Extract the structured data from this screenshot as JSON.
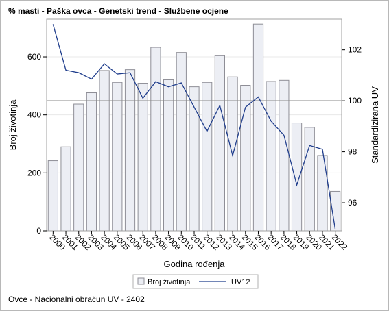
{
  "header": {
    "title": "% masti - Paška ovca - Genetski trend - Službene ocjene"
  },
  "footer": {
    "text": "Ovce - Nacionalni obračun UV - 2402"
  },
  "colors": {
    "bar_fill": "#eceef4",
    "bar_stroke": "#8e8e96",
    "line": "#1f3d8c",
    "reference_line": "#8a8a8a",
    "grid": "#e8e8e8",
    "plot_border": "#a0a0a0"
  },
  "chart_data": {
    "type": "bar",
    "categories": [
      "2000",
      "2001",
      "2002",
      "2003",
      "2004",
      "2005",
      "2006",
      "2007",
      "2008",
      "2009",
      "2010",
      "2011",
      "2012",
      "2013",
      "2014",
      "2015",
      "2016",
      "2017",
      "2018",
      "2019",
      "2020",
      "2021",
      "2022"
    ],
    "series": [
      {
        "name": "Broj životinja",
        "type": "bar",
        "axis": "left",
        "values": [
          242,
          290,
          437,
          476,
          553,
          512,
          556,
          509,
          633,
          521,
          615,
          497,
          512,
          604,
          531,
          502,
          713,
          515,
          519,
          372,
          357,
          260,
          136
        ]
      },
      {
        "name": "UV12",
        "type": "line",
        "axis": "right",
        "values": [
          103.0,
          101.2,
          101.1,
          100.85,
          101.45,
          101.05,
          101.1,
          100.1,
          100.75,
          100.55,
          100.7,
          99.75,
          98.8,
          99.82,
          97.85,
          99.75,
          100.15,
          99.2,
          98.65,
          96.7,
          98.25,
          98.1,
          94.95
        ]
      }
    ],
    "xlabel": "Godina rođenja",
    "ylabel_left": "Broj životinja",
    "ylabel_right": "Standardizirana UV",
    "ylim_left": [
      0,
      730
    ],
    "yticks_left": [
      0,
      200,
      400,
      600
    ],
    "ylim_right": [
      94.9,
      103.2
    ],
    "yticks_right": [
      96,
      98,
      100,
      102
    ],
    "reference_line": 100,
    "grid": true,
    "legend": {
      "position": "bottom",
      "items": [
        "Broj životinja",
        "UV12"
      ]
    }
  }
}
